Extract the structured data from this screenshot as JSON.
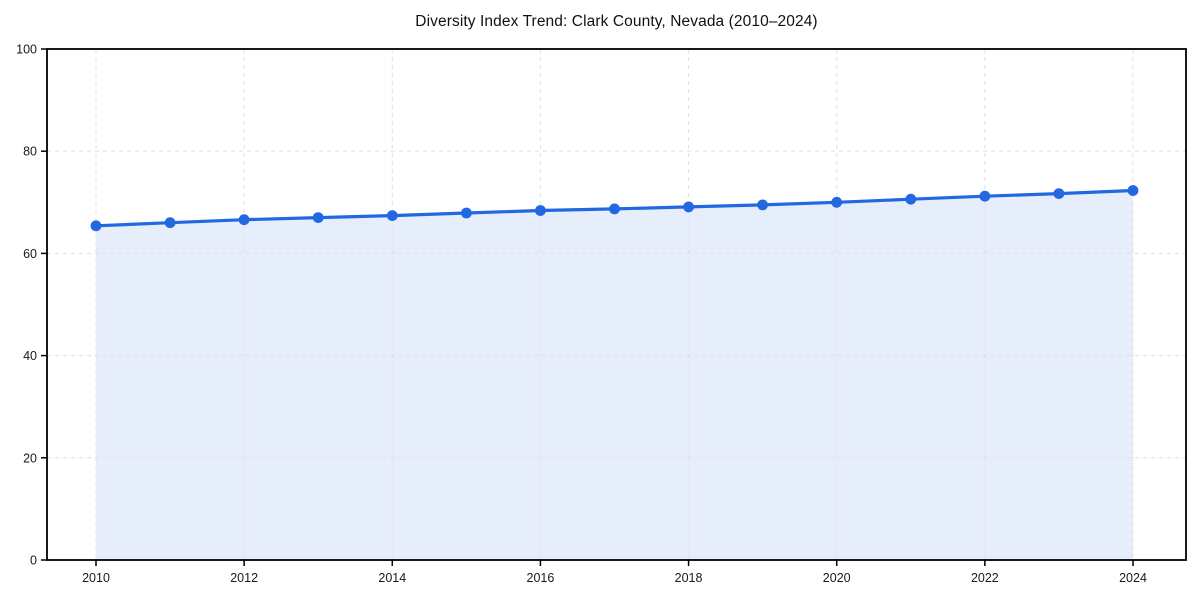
{
  "chart_data": {
    "type": "area",
    "title": "Diversity Index Trend: Clark County, Nevada (2010–2024)",
    "xlabel": "",
    "ylabel": "",
    "x": [
      2010,
      2011,
      2012,
      2013,
      2014,
      2015,
      2016,
      2017,
      2018,
      2019,
      2020,
      2021,
      2022,
      2023,
      2024
    ],
    "values": [
      65.4,
      66.0,
      66.6,
      67.0,
      67.4,
      67.9,
      68.4,
      68.7,
      69.1,
      69.5,
      70.0,
      70.6,
      71.2,
      71.7,
      72.3
    ],
    "xticks": [
      2010,
      2012,
      2014,
      2016,
      2018,
      2020,
      2022,
      2024
    ],
    "yticks": [
      0,
      20,
      40,
      60,
      80,
      100
    ],
    "ylim": [
      0,
      100
    ],
    "grid": true,
    "grid_style": "dashed",
    "legend": "none",
    "marker": "circle",
    "colors": {
      "line": "#2268e0",
      "area_fill": "#e6edfb",
      "grid": "#dde1e6",
      "axis": "#000000",
      "text": "#1a1a1a",
      "background": "#ffffff"
    }
  }
}
